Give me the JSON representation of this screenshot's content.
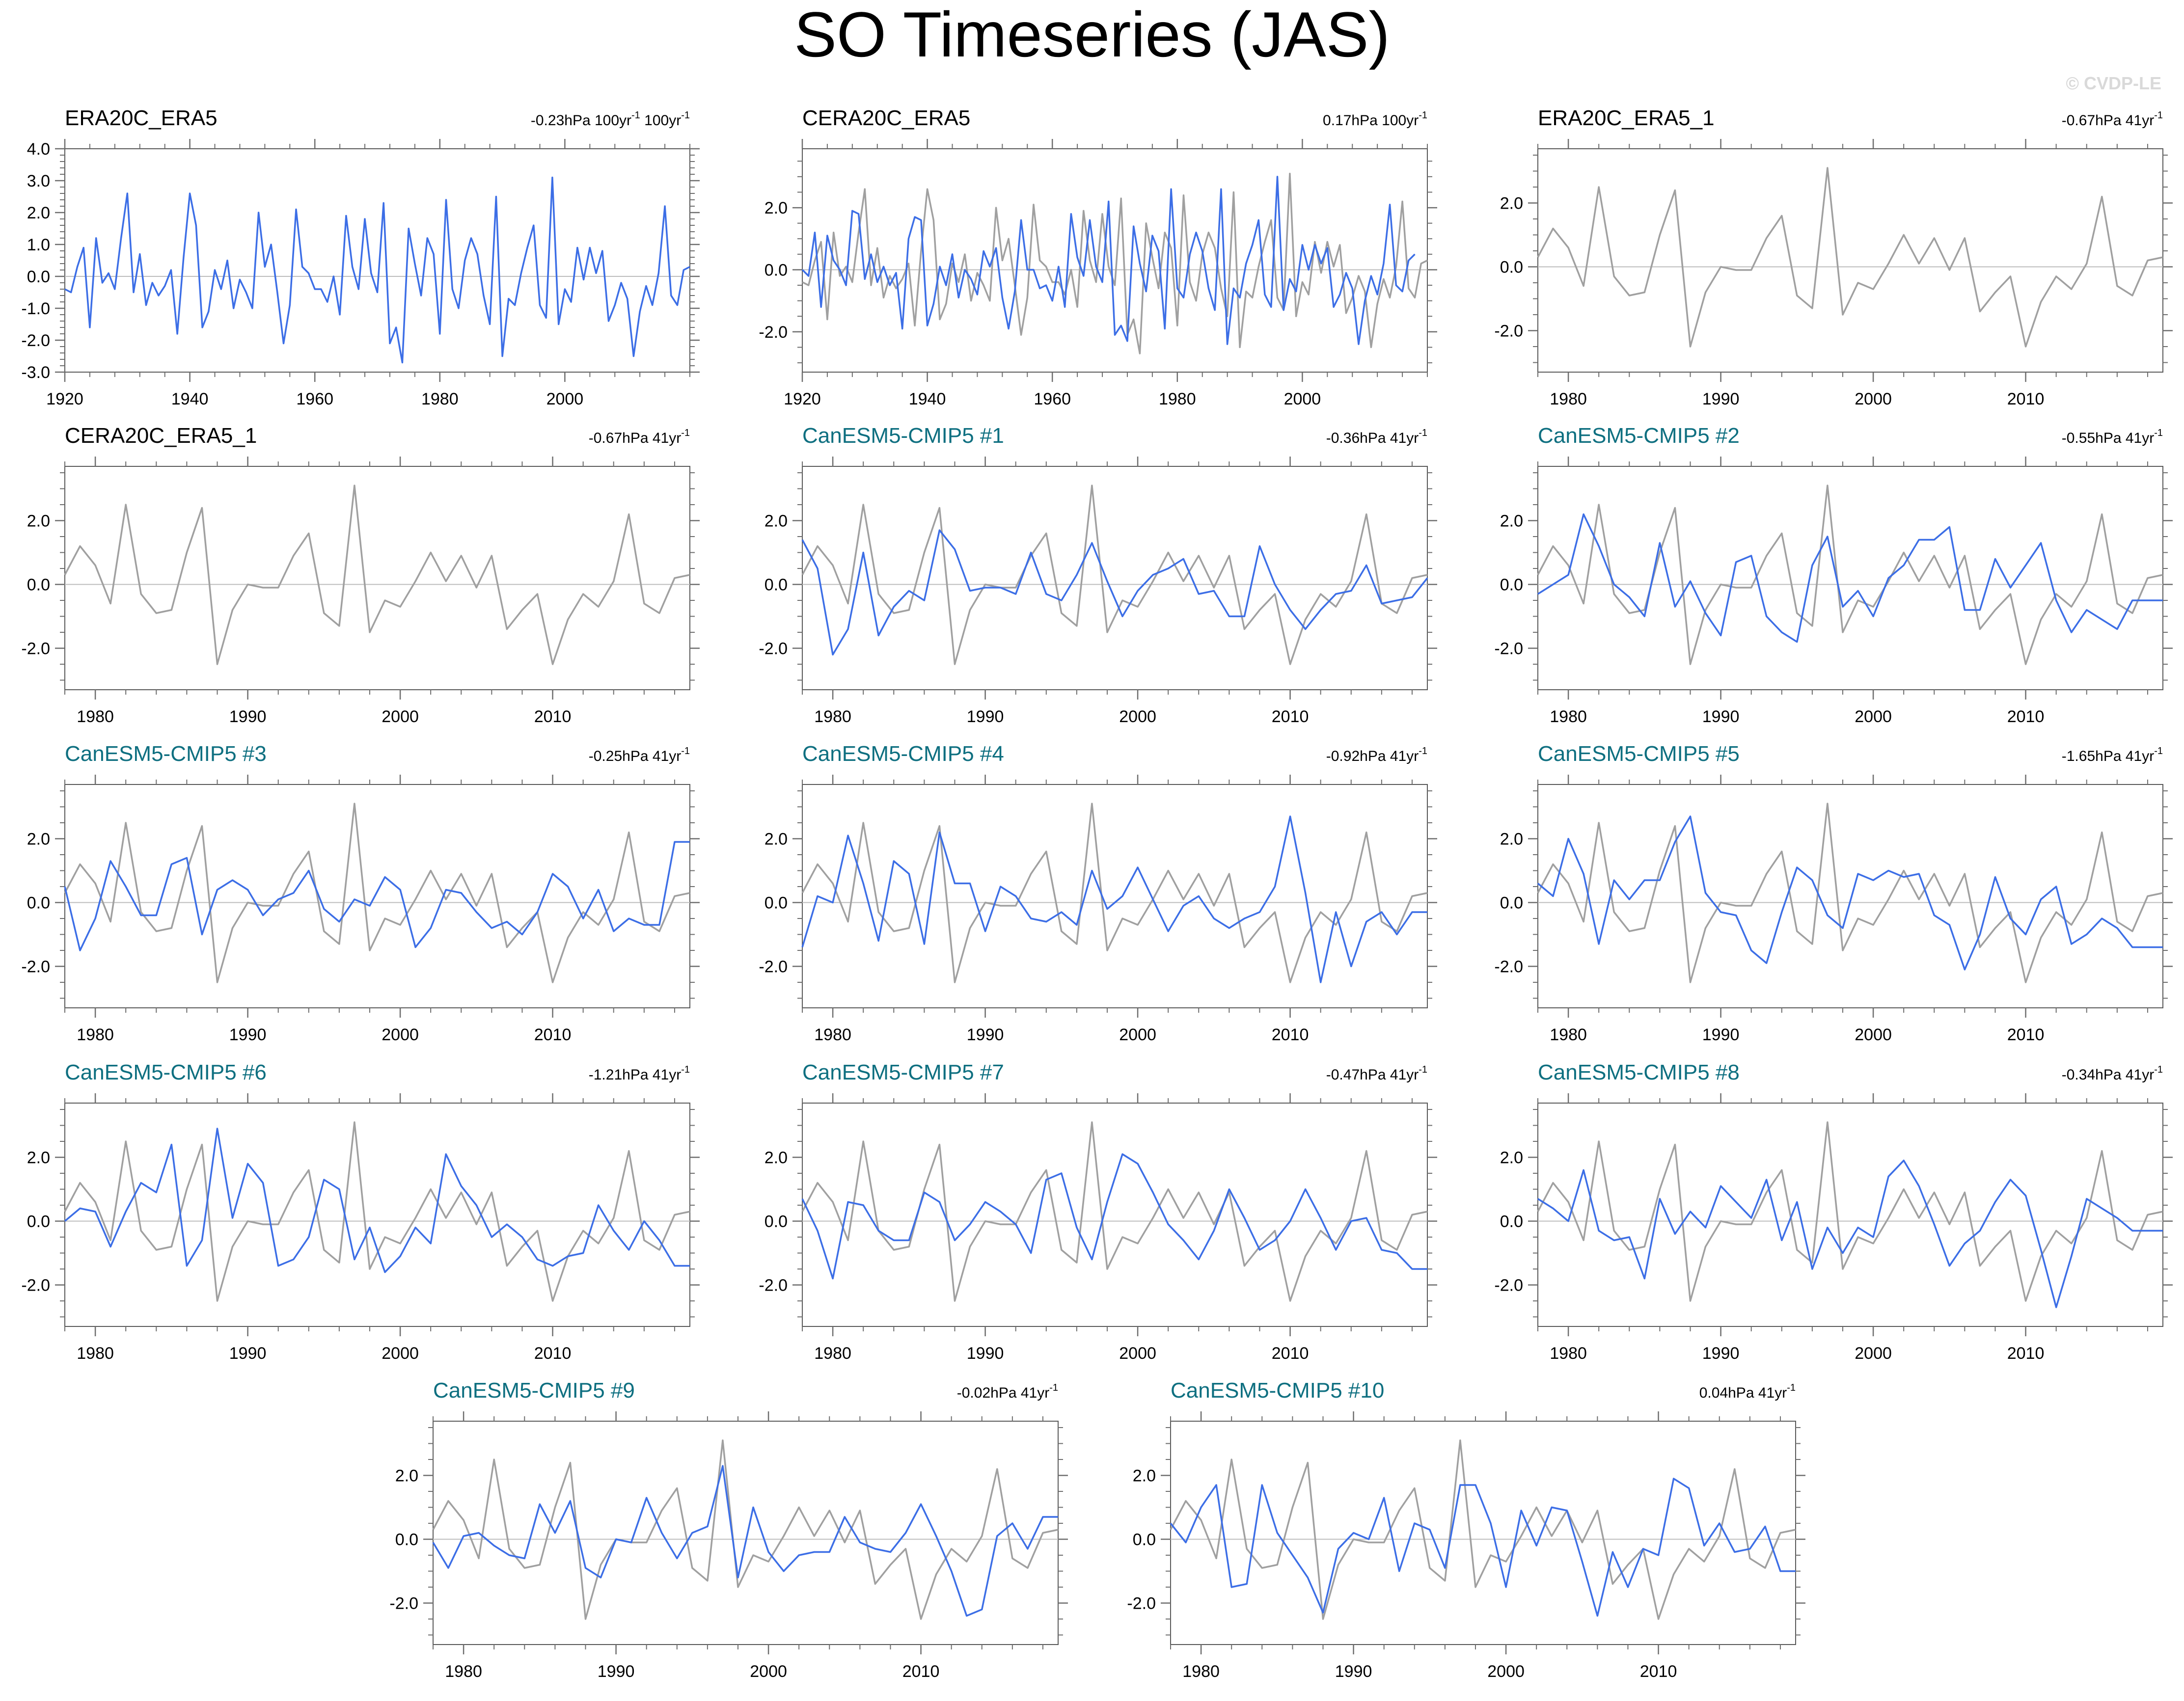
{
  "title": "SO Timeseries (JAS)",
  "copyright": "© CVDP-LE",
  "colors": {
    "obs": "#a0a0a0",
    "model": "#3c6ee6",
    "model_title": "#0e6f80",
    "obs_title": "#000000"
  },
  "obs_long": [
    -0.4,
    -0.5,
    0.3,
    0.9,
    -1.6,
    1.2,
    -0.2,
    0.1,
    -0.4,
    1.2,
    2.6,
    -0.5,
    0.7,
    -0.9,
    -0.2,
    -0.6,
    -0.3,
    0.2,
    -1.8,
    0.6,
    2.6,
    1.6,
    -1.6,
    -1.1,
    0.2,
    -0.4,
    0.5,
    -1.0,
    -0.1,
    -0.5,
    -1.0,
    2.0,
    0.3,
    1.0,
    -0.5,
    -2.1,
    -0.9,
    2.1,
    0.3,
    0.1,
    -0.4,
    -0.4,
    -0.8,
    0.0,
    -1.2,
    1.9,
    0.3,
    -0.4,
    1.8,
    0.1,
    -0.5,
    2.3,
    -2.1,
    -1.6,
    -2.7,
    1.5,
    0.4,
    -0.6,
    1.2,
    0.7,
    -1.8,
    2.4,
    -0.4,
    -1.0,
    0.5,
    1.2,
    0.7,
    -0.6,
    -1.5,
    2.5,
    -2.5,
    -0.7,
    -0.9,
    0.1,
    0.9,
    1.6,
    -0.9,
    -1.3,
    3.1,
    -1.5,
    -0.4,
    -0.8,
    0.9,
    -0.1,
    0.9,
    0.1,
    0.8,
    -1.4,
    -0.9,
    -0.2,
    -0.7,
    -2.5,
    -1.1,
    -0.3,
    -0.9,
    0.1,
    2.2,
    -0.6,
    -0.9,
    0.2,
    0.3
  ],
  "obs_short": [
    0.3,
    1.2,
    0.6,
    -0.6,
    2.5,
    -0.3,
    -0.9,
    -0.8,
    1.0,
    2.4,
    -2.5,
    -0.8,
    0.0,
    -0.1,
    -0.1,
    0.9,
    1.6,
    -0.9,
    -1.3,
    3.1,
    -1.5,
    -0.5,
    -0.7,
    0.1,
    1.0,
    0.1,
    0.9,
    -0.1,
    0.9,
    -1.4,
    -0.8,
    -0.3,
    -2.5,
    -1.1,
    -0.3,
    -0.7,
    0.1,
    2.2,
    -0.6,
    -0.9,
    0.2,
    0.3
  ],
  "panels": [
    {
      "title": "ERA20C_ERA5",
      "trend_value": "-0.23hPa 100yr",
      "trend_sup": "-1",
      "trend_value2": " 100yr",
      "trend_sup2": "-1",
      "title_is_model": false,
      "x_start": 1920,
      "x_end": 2020,
      "y_min": -3.0,
      "y_max": 4.0,
      "y_ticks": [
        -3.0,
        -2.0,
        -1.0,
        0.0,
        1.0,
        2.0,
        3.0,
        4.0
      ],
      "y_tick_labels": [
        "-3.0",
        "-2.0",
        "-1.0",
        "0.0",
        "1.0",
        "2.0",
        "3.0",
        "4.0"
      ],
      "x_ticks": [
        1920,
        1940,
        1960,
        1980,
        2000
      ],
      "x_tick_labels": [
        "1920",
        "1940",
        "1960",
        "1980",
        "2000"
      ],
      "obs_series": null,
      "model_series": "obs_long"
    },
    {
      "title": "CERA20C_ERA5",
      "trend_value": "0.17hPa 100yr",
      "trend_sup": "-1",
      "title_is_model": false,
      "x_start": 1920,
      "x_end": 2020,
      "y_min": -3.3,
      "y_max": 3.9,
      "y_ticks": [
        -2.0,
        0.0,
        2.0
      ],
      "y_tick_labels": [
        "-2.0",
        "0.0",
        "2.0"
      ],
      "x_ticks": [
        1920,
        1940,
        1960,
        1980,
        2000
      ],
      "x_tick_labels": [
        "1920",
        "1940",
        "1960",
        "1980",
        "2000"
      ],
      "obs_series": "obs_long",
      "model_values": [
        0.0,
        -0.2,
        1.2,
        -1.2,
        1.1,
        0.3,
        0.0,
        -0.5,
        1.9,
        1.8,
        -0.3,
        0.5,
        -0.4,
        0.1,
        -0.5,
        -0.1,
        -1.9,
        1.0,
        1.7,
        1.6,
        -1.8,
        -1.1,
        0.1,
        -0.5,
        0.5,
        -0.9,
        0.0,
        -0.3,
        -0.8,
        0.6,
        0.1,
        0.7,
        -0.9,
        -1.9,
        -0.7,
        1.6,
        0.0,
        0.0,
        -0.6,
        -0.5,
        -1.0,
        0.1,
        -1.2,
        1.8,
        0.4,
        -0.2,
        1.6,
        0.1,
        -0.4,
        2.2,
        -2.1,
        -1.8,
        -2.3,
        1.4,
        0.2,
        -0.7,
        1.1,
        0.6,
        -1.9,
        2.6,
        -0.6,
        -0.9,
        0.5,
        1.2,
        0.6,
        -0.6,
        -1.3,
        2.6,
        -2.4,
        -0.6,
        -0.9,
        0.2,
        0.8,
        1.6,
        -0.8,
        -1.2,
        3.0,
        -1.3,
        -0.3,
        -0.7,
        0.8,
        0.0,
        0.8,
        0.2,
        0.7,
        -1.2,
        -0.8,
        -0.1,
        -0.6,
        -2.4,
        -1.0,
        -0.2,
        -0.8,
        0.2,
        2.1,
        -0.5,
        -0.7,
        0.3,
        0.5
      ]
    },
    {
      "title": "ERA20C_ERA5_1",
      "trend_value": "-0.67hPa 41yr",
      "trend_sup": "-1",
      "title_is_model": false,
      "x_start": 1978,
      "x_end": 2019,
      "y_min": -3.3,
      "y_max": 3.7,
      "y_ticks": [
        -2.0,
        0.0,
        2.0
      ],
      "y_tick_labels": [
        "-2.0",
        "0.0",
        "2.0"
      ],
      "x_ticks": [
        1980,
        1990,
        2000,
        2010
      ],
      "x_tick_labels": [
        "1980",
        "1990",
        "2000",
        "2010"
      ],
      "obs_series": "obs_short",
      "model_values": null
    },
    {
      "title": "CERA20C_ERA5_1",
      "trend_value": "-0.67hPa 41yr",
      "trend_sup": "-1",
      "title_is_model": false,
      "x_start": 1978,
      "x_end": 2019,
      "y_min": -3.3,
      "y_max": 3.7,
      "y_ticks": [
        -2.0,
        0.0,
        2.0
      ],
      "y_tick_labels": [
        "-2.0",
        "0.0",
        "2.0"
      ],
      "x_ticks": [
        1980,
        1990,
        2000,
        2010
      ],
      "x_tick_labels": [
        "1980",
        "1990",
        "2000",
        "2010"
      ],
      "obs_series": "obs_short",
      "model_values": null
    },
    {
      "title": "CanESM5-CMIP5 #1",
      "trend_value": "-0.36hPa 41yr",
      "trend_sup": "-1",
      "title_is_model": true,
      "x_start": 1978,
      "x_end": 2019,
      "y_min": -3.3,
      "y_max": 3.7,
      "y_ticks": [
        -2.0,
        0.0,
        2.0
      ],
      "y_tick_labels": [
        "-2.0",
        "0.0",
        "2.0"
      ],
      "x_ticks": [
        1980,
        1990,
        2000,
        2010
      ],
      "x_tick_labels": [
        "1980",
        "1990",
        "2000",
        "2010"
      ],
      "obs_series": "obs_short",
      "model_values": [
        1.4,
        0.5,
        -2.2,
        -1.4,
        1.0,
        -1.6,
        -0.7,
        -0.2,
        -0.5,
        1.7,
        1.1,
        -0.2,
        -0.1,
        -0.1,
        -0.3,
        1.0,
        -0.3,
        -0.5,
        0.3,
        1.3,
        0.1,
        -1.0,
        -0.2,
        0.3,
        0.5,
        0.8,
        -0.3,
        -0.2,
        -1.0,
        -1.0,
        1.2,
        0.0,
        -0.8,
        -1.4,
        -0.8,
        -0.3,
        -0.2,
        0.6,
        -0.6,
        -0.5,
        -0.4,
        0.2
      ]
    },
    {
      "title": "CanESM5-CMIP5 #2",
      "trend_value": "-0.55hPa 41yr",
      "trend_sup": "-1",
      "title_is_model": true,
      "x_start": 1978,
      "x_end": 2019,
      "y_min": -3.3,
      "y_max": 3.7,
      "y_ticks": [
        -2.0,
        0.0,
        2.0
      ],
      "y_tick_labels": [
        "-2.0",
        "0.0",
        "2.0"
      ],
      "x_ticks": [
        1980,
        1990,
        2000,
        2010
      ],
      "x_tick_labels": [
        "1980",
        "1990",
        "2000",
        "2010"
      ],
      "obs_series": "obs_short",
      "model_values": [
        -0.3,
        0.0,
        0.3,
        2.2,
        1.2,
        0.0,
        -0.4,
        -1.0,
        1.3,
        -0.7,
        0.1,
        -0.9,
        -1.6,
        0.7,
        0.9,
        -1.0,
        -1.5,
        -1.8,
        0.6,
        1.5,
        -0.7,
        -0.2,
        -1.0,
        0.2,
        0.6,
        1.4,
        1.4,
        1.8,
        -0.8,
        -0.8,
        0.8,
        -0.1,
        0.6,
        1.3,
        -0.5,
        -1.5,
        -0.8,
        -1.1,
        -1.4,
        -0.5,
        -0.5,
        -0.5
      ]
    },
    {
      "title": "CanESM5-CMIP5 #3",
      "trend_value": "-0.25hPa 41yr",
      "trend_sup": "-1",
      "title_is_model": true,
      "x_start": 1978,
      "x_end": 2019,
      "y_min": -3.3,
      "y_max": 3.7,
      "y_ticks": [
        -2.0,
        0.0,
        2.0
      ],
      "y_tick_labels": [
        "-2.0",
        "0.0",
        "2.0"
      ],
      "x_ticks": [
        1980,
        1990,
        2000,
        2010
      ],
      "x_tick_labels": [
        "1980",
        "1990",
        "2000",
        "2010"
      ],
      "obs_series": "obs_short",
      "model_values": [
        0.5,
        -1.5,
        -0.5,
        1.3,
        0.5,
        -0.4,
        -0.4,
        1.2,
        1.4,
        -1.0,
        0.4,
        0.7,
        0.4,
        -0.4,
        0.1,
        0.3,
        1.0,
        -0.2,
        -0.6,
        0.1,
        -0.1,
        0.8,
        0.4,
        -1.4,
        -0.8,
        0.4,
        0.3,
        -0.3,
        -0.8,
        -0.6,
        -1.0,
        -0.3,
        0.9,
        0.5,
        -0.5,
        0.4,
        -0.9,
        -0.5,
        -0.7,
        -0.7,
        1.9,
        1.9
      ]
    },
    {
      "title": "CanESM5-CMIP5 #4",
      "trend_value": "-0.92hPa 41yr",
      "trend_sup": "-1",
      "title_is_model": true,
      "x_start": 1978,
      "x_end": 2019,
      "y_min": -3.3,
      "y_max": 3.7,
      "y_ticks": [
        -2.0,
        0.0,
        2.0
      ],
      "y_tick_labels": [
        "-2.0",
        "0.0",
        "2.0"
      ],
      "x_ticks": [
        1980,
        1990,
        2000,
        2010
      ],
      "x_tick_labels": [
        "1980",
        "1990",
        "2000",
        "2010"
      ],
      "obs_series": "obs_short",
      "model_values": [
        -1.4,
        0.2,
        0.0,
        2.1,
        0.6,
        -1.2,
        1.3,
        0.9,
        -1.3,
        2.2,
        0.6,
        0.6,
        -0.9,
        0.5,
        0.2,
        -0.5,
        -0.6,
        -0.3,
        -0.7,
        1.0,
        -0.2,
        0.2,
        1.1,
        0.1,
        -0.9,
        -0.1,
        0.2,
        -0.5,
        -0.8,
        -0.5,
        -0.3,
        0.5,
        2.7,
        0.3,
        -2.5,
        -0.3,
        -2.0,
        -0.6,
        -0.3,
        -1.0,
        -0.3,
        -0.3
      ]
    },
    {
      "title": "CanESM5-CMIP5 #5",
      "trend_value": "-1.65hPa 41yr",
      "trend_sup": "-1",
      "title_is_model": true,
      "x_start": 1978,
      "x_end": 2019,
      "y_min": -3.3,
      "y_max": 3.7,
      "y_ticks": [
        -2.0,
        0.0,
        2.0
      ],
      "y_tick_labels": [
        "-2.0",
        "0.0",
        "2.0"
      ],
      "x_ticks": [
        1980,
        1990,
        2000,
        2010
      ],
      "x_tick_labels": [
        "1980",
        "1990",
        "2000",
        "2010"
      ],
      "obs_series": "obs_short",
      "model_values": [
        0.6,
        0.2,
        2.0,
        0.9,
        -1.3,
        0.7,
        0.1,
        0.7,
        0.7,
        1.9,
        2.7,
        0.3,
        -0.3,
        -0.4,
        -1.5,
        -1.9,
        -0.3,
        1.1,
        0.7,
        -0.4,
        -0.8,
        0.9,
        0.7,
        1.0,
        0.8,
        0.9,
        -0.4,
        -0.7,
        -2.1,
        -1.0,
        0.8,
        -0.5,
        -1.0,
        0.1,
        0.5,
        -1.3,
        -1.0,
        -0.5,
        -0.8,
        -1.4,
        -1.4,
        -1.4
      ]
    },
    {
      "title": "CanESM5-CMIP5 #6",
      "trend_value": "-1.21hPa 41yr",
      "trend_sup": "-1",
      "title_is_model": true,
      "x_start": 1978,
      "x_end": 2019,
      "y_min": -3.3,
      "y_max": 3.7,
      "y_ticks": [
        -2.0,
        0.0,
        2.0
      ],
      "y_tick_labels": [
        "-2.0",
        "0.0",
        "2.0"
      ],
      "x_ticks": [
        1980,
        1990,
        2000,
        2010
      ],
      "x_tick_labels": [
        "1980",
        "1990",
        "2000",
        "2010"
      ],
      "obs_series": "obs_short",
      "model_values": [
        0.0,
        0.4,
        0.3,
        -0.8,
        0.3,
        1.2,
        0.9,
        2.4,
        -1.4,
        -0.6,
        2.9,
        0.1,
        1.8,
        1.2,
        -1.4,
        -1.2,
        -0.5,
        1.3,
        1.0,
        -1.2,
        -0.2,
        -1.6,
        -1.1,
        -0.2,
        -0.7,
        2.1,
        1.1,
        0.5,
        -0.5,
        -0.1,
        -0.5,
        -1.2,
        -1.4,
        -1.1,
        -1.0,
        0.5,
        -0.3,
        -0.9,
        0.0,
        -0.6,
        -1.4,
        -1.4
      ]
    },
    {
      "title": "CanESM5-CMIP5 #7",
      "trend_value": "-0.47hPa 41yr",
      "trend_sup": "-1",
      "title_is_model": true,
      "x_start": 1978,
      "x_end": 2019,
      "y_min": -3.3,
      "y_max": 3.7,
      "y_ticks": [
        -2.0,
        0.0,
        2.0
      ],
      "y_tick_labels": [
        "-2.0",
        "0.0",
        "2.0"
      ],
      "x_ticks": [
        1980,
        1990,
        2000,
        2010
      ],
      "x_tick_labels": [
        "1980",
        "1990",
        "2000",
        "2010"
      ],
      "obs_series": "obs_short",
      "model_values": [
        0.7,
        -0.3,
        -1.8,
        0.6,
        0.5,
        -0.3,
        -0.6,
        -0.6,
        0.9,
        0.6,
        -0.6,
        -0.1,
        0.6,
        0.3,
        -0.1,
        -1.0,
        1.3,
        1.5,
        -0.2,
        -1.2,
        0.6,
        2.1,
        1.8,
        0.9,
        -0.1,
        -0.6,
        -1.2,
        -0.3,
        1.0,
        0.1,
        -0.9,
        -0.6,
        0.0,
        1.0,
        0.1,
        -0.9,
        0.0,
        0.1,
        -0.9,
        -1.0,
        -1.5,
        -1.5
      ]
    },
    {
      "title": "CanESM5-CMIP5 #8",
      "trend_value": "-0.34hPa 41yr",
      "trend_sup": "-1",
      "title_is_model": true,
      "x_start": 1978,
      "x_end": 2019,
      "y_min": -3.3,
      "y_max": 3.7,
      "y_ticks": [
        -2.0,
        0.0,
        2.0
      ],
      "y_tick_labels": [
        "-2.0",
        "0.0",
        "2.0"
      ],
      "x_ticks": [
        1980,
        1990,
        2000,
        2010
      ],
      "x_tick_labels": [
        "1980",
        "1990",
        "2000",
        "2010"
      ],
      "obs_series": "obs_short",
      "model_values": [
        0.7,
        0.4,
        0.0,
        1.6,
        -0.3,
        -0.6,
        -0.5,
        -1.8,
        0.7,
        -0.4,
        0.3,
        -0.2,
        1.1,
        0.6,
        0.1,
        1.3,
        -0.6,
        0.6,
        -1.5,
        -0.2,
        -1.0,
        -0.2,
        -0.5,
        1.4,
        1.9,
        1.1,
        -0.1,
        -1.4,
        -0.7,
        -0.3,
        0.6,
        1.3,
        0.8,
        -0.9,
        -2.7,
        -1.1,
        0.7,
        0.4,
        0.1,
        -0.3,
        -0.3,
        -0.3
      ]
    },
    {
      "title": "CanESM5-CMIP5 #9",
      "trend_value": "-0.02hPa 41yr",
      "trend_sup": "-1",
      "title_is_model": true,
      "x_start": 1978,
      "x_end": 2019,
      "y_min": -3.3,
      "y_max": 3.7,
      "y_ticks": [
        -2.0,
        0.0,
        2.0
      ],
      "y_tick_labels": [
        "-2.0",
        "0.0",
        "2.0"
      ],
      "x_ticks": [
        1980,
        1990,
        2000,
        2010
      ],
      "x_tick_labels": [
        "1980",
        "1990",
        "2000",
        "2010"
      ],
      "obs_series": "obs_short",
      "model_values": [
        -0.1,
        -0.9,
        0.1,
        0.2,
        -0.2,
        -0.5,
        -0.6,
        1.1,
        0.2,
        1.2,
        -0.9,
        -1.2,
        0.0,
        -0.1,
        1.3,
        0.2,
        -0.6,
        0.2,
        0.4,
        2.3,
        -1.2,
        1.0,
        -0.4,
        -1.0,
        -0.5,
        -0.4,
        -0.4,
        0.7,
        -0.1,
        -0.3,
        -0.4,
        0.2,
        1.1,
        0.1,
        -1.0,
        -2.4,
        -2.2,
        0.1,
        0.5,
        -0.3,
        0.7,
        0.7
      ]
    },
    {
      "title": "CanESM5-CMIP5 #10",
      "trend_value": "0.04hPa 41yr",
      "trend_sup": "-1",
      "title_is_model": true,
      "x_start": 1978,
      "x_end": 2019,
      "y_min": -3.3,
      "y_max": 3.7,
      "y_ticks": [
        -2.0,
        0.0,
        2.0
      ],
      "y_tick_labels": [
        "-2.0",
        "0.0",
        "2.0"
      ],
      "x_ticks": [
        1980,
        1990,
        2000,
        2010
      ],
      "x_tick_labels": [
        "1980",
        "1990",
        "2000",
        "2010"
      ],
      "obs_series": "obs_short",
      "model_values": [
        0.5,
        -0.1,
        1.0,
        1.7,
        -1.5,
        -1.4,
        1.7,
        0.2,
        -0.5,
        -1.2,
        -2.3,
        -0.3,
        0.2,
        0.0,
        1.3,
        -1.0,
        0.5,
        0.3,
        -0.9,
        1.7,
        1.7,
        0.5,
        -1.5,
        0.9,
        -0.2,
        1.0,
        0.9,
        -0.7,
        -2.4,
        -0.4,
        -1.5,
        -0.3,
        -0.5,
        1.9,
        1.6,
        -0.2,
        0.5,
        -0.4,
        -0.3,
        0.4,
        -1.0,
        -1.0
      ]
    }
  ]
}
